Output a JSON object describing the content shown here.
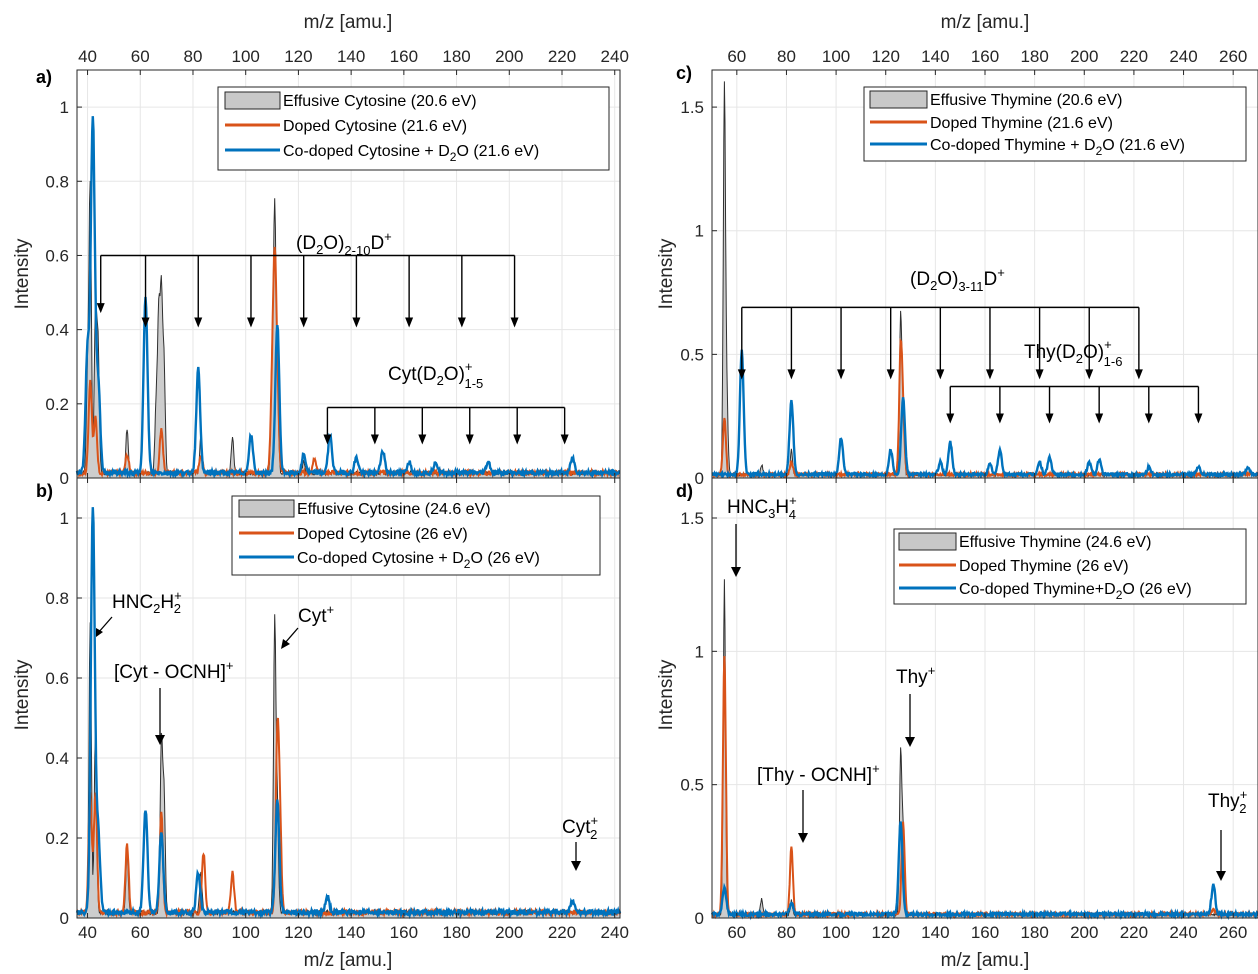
{
  "colors": {
    "effusive": "#303030",
    "effusive_fill": "#c8c8c8",
    "doped": "#d95319",
    "codoped": "#0072bd",
    "grid": "#e6e6e6"
  },
  "chart_data": [
    {
      "id": "a",
      "type": "line",
      "label": "a)",
      "x_axis_label": "m/z [amu.]",
      "y_axis_label": "Intensity",
      "xlim": [
        36,
        242
      ],
      "ylim": [
        0,
        1.1
      ],
      "x_ticks": [
        "40",
        "60",
        "80",
        "100",
        "120",
        "140",
        "160",
        "180",
        "200",
        "220",
        "240"
      ],
      "y_ticks": [
        "0",
        "0.2",
        "0.4",
        "0.6",
        "0.8",
        "1"
      ],
      "legend": [
        "Effusive Cytosine (20.6 eV)",
        "Doped Cytosine (21.6 eV)",
        "Co-doped Cytosine + D",
        "O (21.6 eV)"
      ],
      "annotations": [
        "(D",
        "O)",
        "2-10",
        "D",
        "+",
        "Cyt(D",
        "O)",
        "+",
        "1-5"
      ],
      "series": [
        {
          "key": "effusive",
          "peaks": [
            [
              40,
              0.25
            ],
            [
              41,
              0.77
            ],
            [
              43,
              0.43
            ],
            [
              44,
              0.35
            ],
            [
              55,
              0.12
            ],
            [
              66,
              0.18
            ],
            [
              67,
              0.42
            ],
            [
              68,
              0.47
            ],
            [
              69,
              0.3
            ],
            [
              83,
              0.1
            ],
            [
              95,
              0.1
            ],
            [
              110,
              0.3
            ],
            [
              111,
              0.69
            ],
            [
              112,
              0.25
            ],
            [
              122,
              0.03
            ]
          ]
        },
        {
          "key": "doped",
          "peaks": [
            [
              41,
              0.25
            ],
            [
              43,
              0.15
            ],
            [
              55,
              0.05
            ],
            [
              68,
              0.12
            ],
            [
              83,
              0.05
            ],
            [
              110,
              0.2
            ],
            [
              111,
              0.51
            ],
            [
              112,
              0.2
            ],
            [
              126,
              0.04
            ]
          ]
        },
        {
          "key": "codoped",
          "peaks": [
            [
              40,
              0.33
            ],
            [
              42,
              0.95
            ],
            [
              44,
              0.25
            ],
            [
              62,
              0.47
            ],
            [
              82,
              0.28
            ],
            [
              102,
              0.1
            ],
            [
              112,
              0.4
            ],
            [
              122,
              0.05
            ],
            [
              132,
              0.1
            ],
            [
              142,
              0.04
            ],
            [
              152,
              0.06
            ],
            [
              162,
              0.03
            ],
            [
              172,
              0.03
            ],
            [
              192,
              0.03
            ],
            [
              224,
              0.04
            ]
          ]
        }
      ],
      "bracket_main": {
        "y": 0.6,
        "x": [
          45,
          62,
          82,
          102,
          122,
          142,
          162,
          182,
          202
        ]
      },
      "bracket_cyt": {
        "y": 0.19,
        "x": [
          131,
          149,
          167,
          185,
          203,
          221
        ]
      }
    },
    {
      "id": "b",
      "type": "line",
      "label": "b)",
      "x_axis_label": "m/z [amu.]",
      "y_axis_label": "Intensity",
      "xlim": [
        36,
        242
      ],
      "ylim": [
        0,
        1.1
      ],
      "x_ticks": [
        "40",
        "60",
        "80",
        "100",
        "120",
        "140",
        "160",
        "180",
        "200",
        "220",
        "240"
      ],
      "y_ticks": [
        "0",
        "0.2",
        "0.4",
        "0.6",
        "0.8",
        "1"
      ],
      "legend": [
        "Effusive Cytosine (24.6 eV)",
        "Doped Cytosine (26 eV)",
        "Co-doped Cytosine + D",
        "O (26 eV)"
      ],
      "annotations": [
        "HNC",
        "2",
        "H",
        "2",
        "+",
        "[Cyt - OCNH]",
        "+",
        "Cyt",
        "+",
        "Cyt",
        "2",
        "+"
      ],
      "series": [
        {
          "key": "effusive",
          "peaks": [
            [
              41,
              0.73
            ],
            [
              43,
              0.45
            ],
            [
              55,
              0.15
            ],
            [
              68,
              0.42
            ],
            [
              69,
              0.3
            ],
            [
              83,
              0.1
            ],
            [
              111,
              0.72
            ],
            [
              112,
              0.25
            ]
          ]
        },
        {
          "key": "doped",
          "peaks": [
            [
              41,
              0.3
            ],
            [
              43,
              0.3
            ],
            [
              55,
              0.17
            ],
            [
              68,
              0.25
            ],
            [
              84,
              0.15
            ],
            [
              95,
              0.1
            ],
            [
              112,
              0.43
            ],
            [
              113,
              0.2
            ]
          ]
        },
        {
          "key": "codoped",
          "peaks": [
            [
              42,
              1.01
            ],
            [
              44,
              0.2
            ],
            [
              62,
              0.26
            ],
            [
              68,
              0.2
            ],
            [
              82,
              0.1
            ],
            [
              112,
              0.28
            ],
            [
              131,
              0.04
            ],
            [
              224,
              0.03
            ]
          ]
        }
      ]
    },
    {
      "id": "c",
      "type": "line",
      "label": "c)",
      "x_axis_label": "m/z [amu.]",
      "y_axis_label": "Intensity",
      "xlim": [
        50,
        270
      ],
      "ylim": [
        0,
        1.65
      ],
      "x_ticks": [
        "60",
        "80",
        "100",
        "120",
        "140",
        "160",
        "180",
        "200",
        "220",
        "240",
        "260"
      ],
      "y_ticks": [
        "0",
        "0.5",
        "1",
        "1.5"
      ],
      "legend": [
        "Effusive Thymine (20.6 eV)",
        "Doped Thymine (21.6 eV)",
        "Co-doped Thymine + D",
        "O (21.6 eV)"
      ],
      "annotations": [
        "(D",
        "O)",
        "3-11",
        "D",
        "+",
        "Thy(D",
        "O)",
        "+",
        "1-6"
      ],
      "series": [
        {
          "key": "effusive",
          "peaks": [
            [
              55,
              1.57
            ],
            [
              56,
              0.3
            ],
            [
              70,
              0.04
            ],
            [
              82,
              0.1
            ],
            [
              126,
              0.64
            ],
            [
              127,
              0.3
            ]
          ]
        },
        {
          "key": "doped",
          "peaks": [
            [
              55,
              0.23
            ],
            [
              82,
              0.05
            ],
            [
              126,
              0.49
            ],
            [
              127,
              0.2
            ]
          ]
        },
        {
          "key": "codoped",
          "peaks": [
            [
              62,
              0.5
            ],
            [
              82,
              0.3
            ],
            [
              102,
              0.15
            ],
            [
              122,
              0.1
            ],
            [
              127,
              0.31
            ],
            [
              142,
              0.05
            ],
            [
              146,
              0.13
            ],
            [
              162,
              0.04
            ],
            [
              166,
              0.1
            ],
            [
              182,
              0.05
            ],
            [
              186,
              0.07
            ],
            [
              202,
              0.05
            ],
            [
              206,
              0.06
            ],
            [
              226,
              0.03
            ],
            [
              246,
              0.03
            ],
            [
              266,
              0.03
            ]
          ]
        }
      ],
      "bracket_main": {
        "y": 0.69,
        "x": [
          62,
          82,
          102,
          122,
          142,
          162,
          182,
          202,
          222
        ]
      },
      "bracket_thy": {
        "y": 0.37,
        "x": [
          146,
          166,
          186,
          206,
          226,
          246
        ]
      }
    },
    {
      "id": "d",
      "type": "line",
      "label": "d)",
      "x_axis_label": "m/z [amu.]",
      "y_axis_label": "Intensity",
      "xlim": [
        50,
        270
      ],
      "ylim": [
        0,
        1.65
      ],
      "x_ticks": [
        "60",
        "80",
        "100",
        "120",
        "140",
        "160",
        "180",
        "200",
        "220",
        "240",
        "260"
      ],
      "y_ticks": [
        "0",
        "0.5",
        "1",
        "1.5"
      ],
      "legend": [
        "Effusive Thymine (24.6 eV)",
        "Doped Thymine (26 eV)",
        "Co-doped Thymine+D",
        "O (26 eV)"
      ],
      "annotations": [
        "HNC",
        "3",
        "H",
        "4",
        "+",
        "[Thy - OCNH]",
        "+",
        "Thy",
        "+",
        "Thy",
        "2",
        "+"
      ],
      "series": [
        {
          "key": "effusive",
          "peaks": [
            [
              55,
              1.25
            ],
            [
              70,
              0.06
            ],
            [
              82,
              0.05
            ],
            [
              126,
              0.6
            ],
            [
              127,
              0.3
            ]
          ]
        },
        {
          "key": "doped",
          "peaks": [
            [
              55,
              0.97
            ],
            [
              82,
              0.25
            ],
            [
              127,
              0.35
            ],
            [
              252,
              0.02
            ]
          ]
        },
        {
          "key": "codoped",
          "peaks": [
            [
              55,
              0.1
            ],
            [
              82,
              0.04
            ],
            [
              126,
              0.35
            ],
            [
              252,
              0.11
            ]
          ]
        }
      ]
    }
  ]
}
